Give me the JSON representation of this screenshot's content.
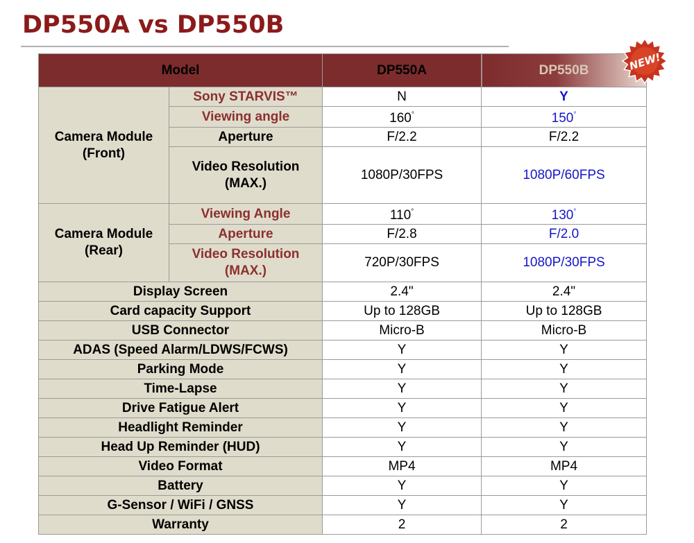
{
  "title": "DP550A vs DP550B",
  "badge": {
    "text": "NEW!"
  },
  "table": {
    "header": {
      "model": "Model",
      "a": "DP550A",
      "b": "DP550B"
    },
    "degree_symbol": "°",
    "front": {
      "label": "Camera Module (Front)",
      "rows": [
        {
          "label": "Sony STARVIS™",
          "a": "N",
          "b": "Y"
        },
        {
          "label": "Viewing angle",
          "a": "160",
          "b": "150"
        },
        {
          "label": "Aperture",
          "a": "F/2.2",
          "b": "F/2.2"
        },
        {
          "label": "Video Resolution (MAX.)",
          "a": "1080P/30FPS",
          "b": "1080P/60FPS"
        }
      ]
    },
    "rear": {
      "label": "Camera Module (Rear)",
      "rows": [
        {
          "label": "Viewing Angle",
          "a": "110",
          "b": "130"
        },
        {
          "label": "Aperture",
          "a": "F/2.8",
          "b": "F/2.0"
        },
        {
          "label": "Video Resolution (MAX.)",
          "a": "720P/30FPS",
          "b": "1080P/30FPS"
        }
      ]
    },
    "features": [
      {
        "label": "Display Screen",
        "a": "2.4\"",
        "b": "2.4\""
      },
      {
        "label": "Card capacity Support",
        "a": "Up to 128GB",
        "b": "Up to 128GB"
      },
      {
        "label": "USB Connector",
        "a": "Micro-B",
        "b": "Micro-B"
      },
      {
        "label": "ADAS (Speed Alarm/LDWS/FCWS)",
        "a": "Y",
        "b": "Y"
      },
      {
        "label": "Parking Mode",
        "a": "Y",
        "b": "Y"
      },
      {
        "label": "Time-Lapse",
        "a": "Y",
        "b": "Y"
      },
      {
        "label": "Drive Fatigue Alert",
        "a": "Y",
        "b": "Y"
      },
      {
        "label": "Headlight Reminder",
        "a": "Y",
        "b": "Y"
      },
      {
        "label": "Head Up Reminder (HUD)",
        "a": "Y",
        "b": "Y"
      },
      {
        "label": "Video Format",
        "a": "MP4",
        "b": "MP4"
      },
      {
        "label": "Battery",
        "a": "Y",
        "b": "Y"
      },
      {
        "label": "G-Sensor / WiFi / GNSS",
        "a": "Y",
        "b": "Y"
      },
      {
        "label": "Warranty",
        "a": "2",
        "b": "2"
      }
    ],
    "colors": {
      "header_bg": "#7c2c2c",
      "category_bg": "#e0dccb",
      "red_label": "#8b3030",
      "highlight_blue": "#1515c8",
      "title_color": "#8b1a1a"
    }
  }
}
